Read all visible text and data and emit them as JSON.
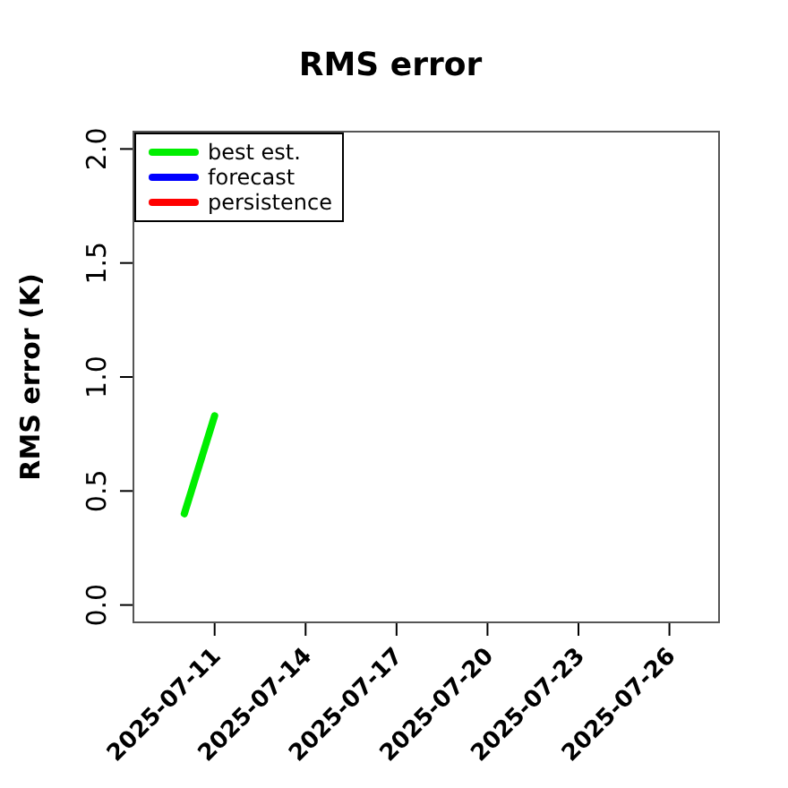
{
  "chart_data": {
    "type": "line",
    "title": "RMS error",
    "ylabel": "RMS error (K)",
    "x": [
      "2025-07-10",
      "2025-07-11"
    ],
    "series": [
      {
        "name": "best est.",
        "color": "#00ee00",
        "values": [
          0.4,
          0.83
        ]
      },
      {
        "name": "forecast",
        "color": "#0000ff",
        "values": [
          null,
          null
        ]
      },
      {
        "name": "persistence",
        "color": "#ff0000",
        "values": [
          null,
          null
        ]
      }
    ],
    "xlim": [
      "2025-07-08T07:00",
      "2025-07-27T16:00"
    ],
    "xticks": [
      "2025-07-11",
      "2025-07-14",
      "2025-07-17",
      "2025-07-20",
      "2025-07-23",
      "2025-07-26"
    ],
    "ylim": [
      -0.08,
      2.08
    ],
    "yticks": [
      {
        "value": 0,
        "label": "0.0"
      },
      {
        "value": 0.5,
        "label": "0.5"
      },
      {
        "value": 1,
        "label": "1.0"
      },
      {
        "value": 1.5,
        "label": "1.5"
      },
      {
        "value": 2,
        "label": "2.0"
      }
    ],
    "grid": false,
    "legend": "top left",
    "marker": "none",
    "line_style": "solid"
  }
}
